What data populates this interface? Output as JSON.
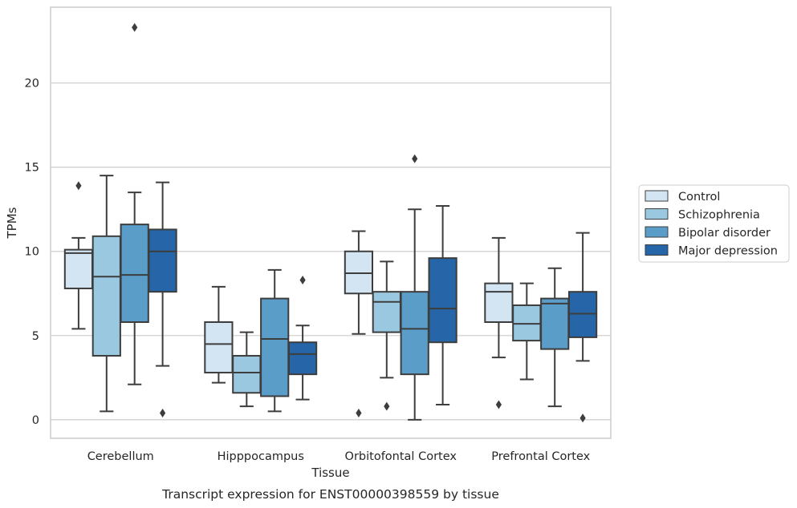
{
  "chart_data": {
    "type": "boxplot",
    "title": "Transcript expression for ENST00000398559 by tissue",
    "xlabel": "Tissue",
    "ylabel": "TPMs",
    "ylim": [
      -1.1,
      24.5
    ],
    "yticks": [
      0,
      5,
      10,
      15,
      20
    ],
    "grid": true,
    "legend_position": "right",
    "categories": [
      "Cerebellum",
      "Hipppocampus",
      "Orbitofontal Cortex",
      "Prefrontal Cortex"
    ],
    "series": [
      {
        "name": "Control",
        "color": "#d3e4f3",
        "boxes": [
          {
            "whisker_low": 5.4,
            "q1": 7.8,
            "median": 9.9,
            "q3": 10.1,
            "whisker_high": 10.8,
            "outliers": [
              13.9
            ]
          },
          {
            "whisker_low": 2.2,
            "q1": 2.8,
            "median": 4.5,
            "q3": 5.8,
            "whisker_high": 7.9,
            "outliers": []
          },
          {
            "whisker_low": 5.1,
            "q1": 7.5,
            "median": 8.7,
            "q3": 10.0,
            "whisker_high": 11.2,
            "outliers": [
              0.4
            ]
          },
          {
            "whisker_low": 3.7,
            "q1": 5.8,
            "median": 7.6,
            "q3": 8.1,
            "whisker_high": 10.8,
            "outliers": [
              0.9
            ]
          }
        ]
      },
      {
        "name": "Schizophrenia",
        "color": "#9ac8e0",
        "boxes": [
          {
            "whisker_low": 0.5,
            "q1": 3.8,
            "median": 8.5,
            "q3": 10.9,
            "whisker_high": 14.5,
            "outliers": []
          },
          {
            "whisker_low": 0.8,
            "q1": 1.6,
            "median": 2.8,
            "q3": 3.8,
            "whisker_high": 5.2,
            "outliers": []
          },
          {
            "whisker_low": 2.5,
            "q1": 5.2,
            "median": 7.0,
            "q3": 7.6,
            "whisker_high": 9.4,
            "outliers": [
              0.8
            ]
          },
          {
            "whisker_low": 2.4,
            "q1": 4.7,
            "median": 5.7,
            "q3": 6.8,
            "whisker_high": 8.1,
            "outliers": []
          }
        ]
      },
      {
        "name": "Bipolar disorder",
        "color": "#5a9dc8",
        "boxes": [
          {
            "whisker_low": 2.1,
            "q1": 5.8,
            "median": 8.6,
            "q3": 11.6,
            "whisker_high": 13.5,
            "outliers": [
              23.3
            ]
          },
          {
            "whisker_low": 0.5,
            "q1": 1.4,
            "median": 4.8,
            "q3": 7.2,
            "whisker_high": 8.9,
            "outliers": []
          },
          {
            "whisker_low": 0.0,
            "q1": 2.7,
            "median": 5.4,
            "q3": 7.6,
            "whisker_high": 12.5,
            "outliers": [
              15.5
            ]
          },
          {
            "whisker_low": 0.8,
            "q1": 4.2,
            "median": 6.9,
            "q3": 7.2,
            "whisker_high": 9.0,
            "outliers": []
          }
        ]
      },
      {
        "name": "Major depression",
        "color": "#2666a8",
        "boxes": [
          {
            "whisker_low": 3.2,
            "q1": 7.6,
            "median": 10.0,
            "q3": 11.3,
            "whisker_high": 14.1,
            "outliers": [
              0.4
            ]
          },
          {
            "whisker_low": 1.2,
            "q1": 2.7,
            "median": 3.9,
            "q3": 4.6,
            "whisker_high": 5.6,
            "outliers": [
              8.3
            ]
          },
          {
            "whisker_low": 0.9,
            "q1": 4.6,
            "median": 6.6,
            "q3": 9.6,
            "whisker_high": 12.7,
            "outliers": []
          },
          {
            "whisker_low": 3.5,
            "q1": 4.9,
            "median": 6.3,
            "q3": 7.6,
            "whisker_high": 11.1,
            "outliers": [
              0.1
            ]
          }
        ]
      }
    ]
  }
}
